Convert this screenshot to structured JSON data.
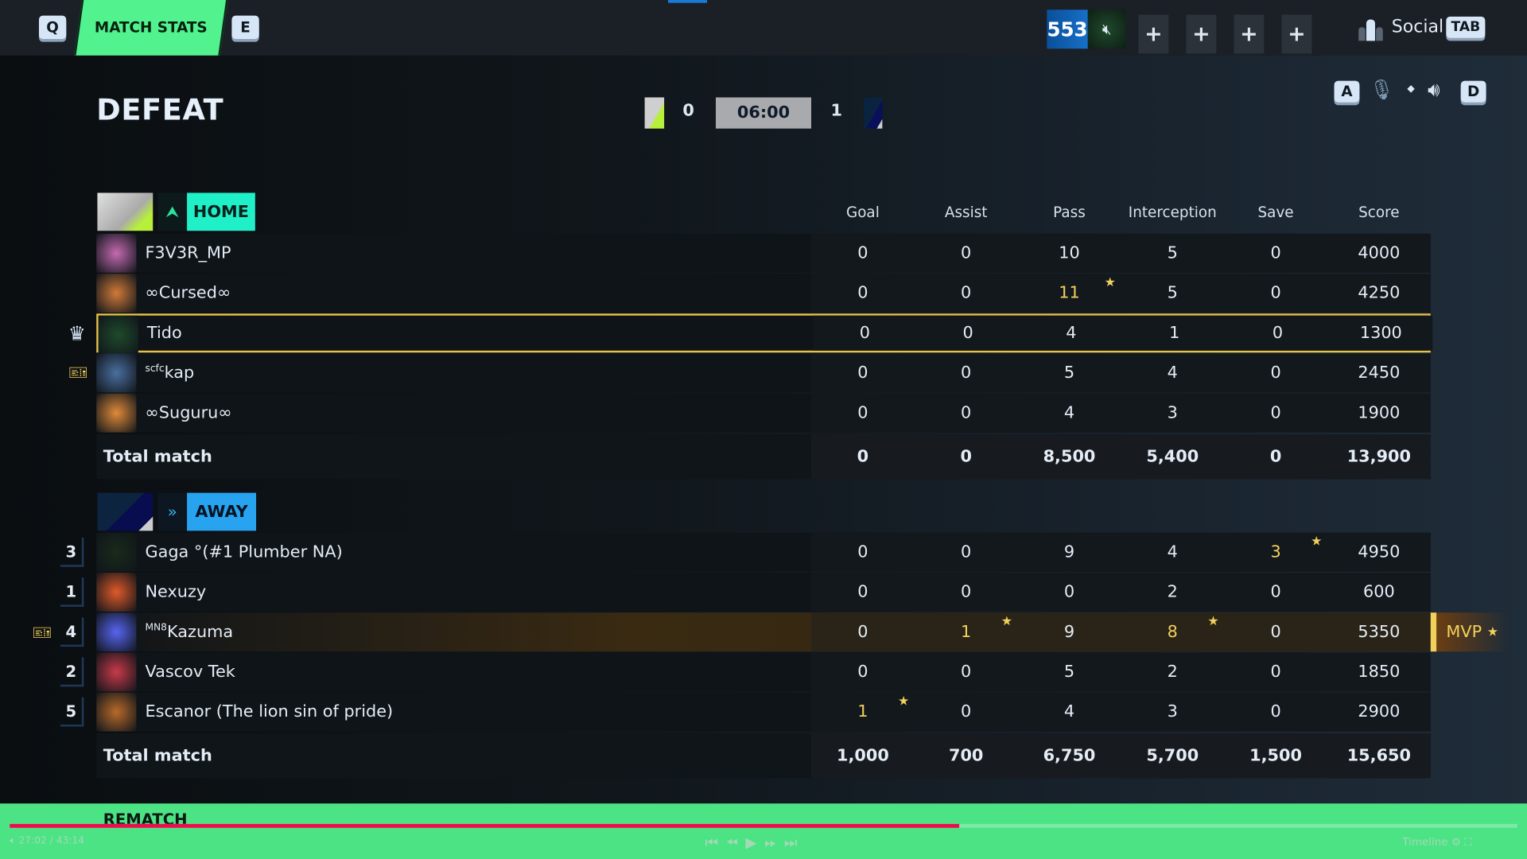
{
  "topbar": {
    "key_prev": "Q",
    "tab_label": "MATCH STATS",
    "key_next": "E",
    "level": "553",
    "social_label": "Social",
    "social_key": "TAB",
    "slots": [
      "+",
      "+",
      "+",
      "+"
    ]
  },
  "result": {
    "title": "DEFEAT",
    "home_score": "0",
    "timer": "06:00",
    "away_score": "1"
  },
  "voice": {
    "key_left": "A",
    "key_right": "D"
  },
  "columns": [
    "Goal",
    "Assist",
    "Pass",
    "Interception",
    "Save",
    "Score"
  ],
  "home": {
    "label": "HOME",
    "color": "#20f0c8",
    "players": [
      {
        "name": "F3V3R_MP",
        "stats": [
          "0",
          "0",
          "10",
          "5",
          "0",
          "4000"
        ]
      },
      {
        "name": "∞Cursed∞",
        "stats": [
          "0",
          "0",
          "11",
          "5",
          "0",
          "4250"
        ],
        "highlights": [
          2
        ]
      },
      {
        "name": "Tido",
        "stats": [
          "0",
          "0",
          "4",
          "1",
          "0",
          "1300"
        ],
        "self": true
      },
      {
        "tag": "scfc",
        "name": "kap",
        "stats": [
          "0",
          "0",
          "5",
          "4",
          "0",
          "2450"
        ]
      },
      {
        "name": "∞Suguru∞",
        "stats": [
          "0",
          "0",
          "4",
          "3",
          "0",
          "1900"
        ]
      }
    ],
    "total_label": "Total match",
    "total": [
      "0",
      "0",
      "8,500",
      "5,400",
      "0",
      "13,900"
    ]
  },
  "away": {
    "label": "AWAY",
    "color": "#27a3f0",
    "players": [
      {
        "rank": "3",
        "name": "Gaga °(#1 Plumber NA)",
        "stats": [
          "0",
          "0",
          "9",
          "4",
          "3",
          "4950"
        ],
        "highlights": [
          4
        ]
      },
      {
        "rank": "1",
        "name": "Nexuzy",
        "stats": [
          "0",
          "0",
          "0",
          "2",
          "0",
          "600"
        ]
      },
      {
        "rank": "4",
        "tag": "MN8",
        "name": "Kazuma",
        "stats": [
          "0",
          "1",
          "9",
          "8",
          "0",
          "5350"
        ],
        "highlights": [
          1,
          3
        ],
        "mvp": "MVP"
      },
      {
        "rank": "2",
        "name": "Vascov Tek",
        "stats": [
          "0",
          "0",
          "5",
          "2",
          "0",
          "1850"
        ]
      },
      {
        "rank": "5",
        "name": "Escanor (The lion sin of pride)",
        "stats": [
          "1",
          "0",
          "4",
          "3",
          "0",
          "2900"
        ],
        "highlights": [
          0
        ]
      }
    ],
    "total_label": "Total match",
    "total": [
      "1,000",
      "700",
      "6,750",
      "5,700",
      "1,500",
      "15,650"
    ]
  },
  "footer": {
    "rematch": "REMATCH",
    "time": "27:02 / 43:14",
    "timeline": "Timeline",
    "progress": 0.63
  },
  "colors": {
    "accent": "#52f28f",
    "highlight": "#f2d15a",
    "self_border": "#e8c34a"
  }
}
